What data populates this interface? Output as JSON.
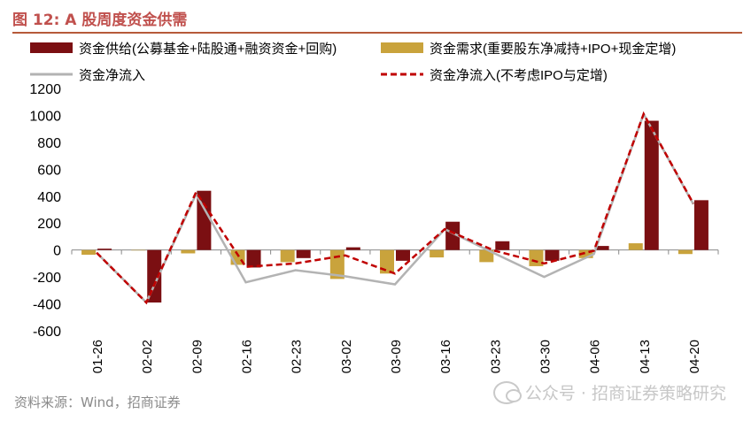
{
  "figure": {
    "title": "图 12:  A 股周度资金供需",
    "source": "资料来源：Wind，招商证券",
    "watermark": "公众号 · 招商证券策略研究"
  },
  "chart_data": {
    "type": "bar",
    "categories": [
      "01-26",
      "02-02",
      "02-09",
      "02-16",
      "02-23",
      "03-02",
      "03-09",
      "03-16",
      "03-23",
      "03-30",
      "04-06",
      "04-13",
      "04-20"
    ],
    "series": [
      {
        "name": "资金供给(公募基金+陆股通+融资资金+回购)",
        "kind": "bar",
        "color": "#7B0F12",
        "values": [
          10,
          -390,
          440,
          -130,
          -60,
          20,
          -80,
          210,
          65,
          -80,
          30,
          960,
          370
        ]
      },
      {
        "name": "资金需求(重要股东净减持+IPO+现金定增)",
        "kind": "bar",
        "color": "#C9A33C",
        "values": [
          -35,
          0,
          -25,
          -110,
          -90,
          -215,
          -175,
          -55,
          -90,
          -120,
          -60,
          50,
          -30
        ]
      },
      {
        "name": "资金净流入",
        "kind": "line",
        "color": "#B3B3B3",
        "values": [
          -20,
          -390,
          415,
          -240,
          -150,
          -195,
          -255,
          155,
          -25,
          -200,
          -30,
          1010,
          340
        ]
      },
      {
        "name": "资金净流入(不考虑IPO与定增)",
        "kind": "dashed-line",
        "color": "#C00000",
        "values": [
          -20,
          -390,
          430,
          -125,
          -100,
          -40,
          -175,
          155,
          -5,
          -100,
          -5,
          1010,
          345
        ]
      }
    ],
    "ylim": [
      -600,
      1200
    ],
    "yticks": [
      -600,
      -400,
      -200,
      0,
      200,
      400,
      600,
      800,
      1000,
      1200
    ],
    "grid": false,
    "legend_position": "top"
  }
}
